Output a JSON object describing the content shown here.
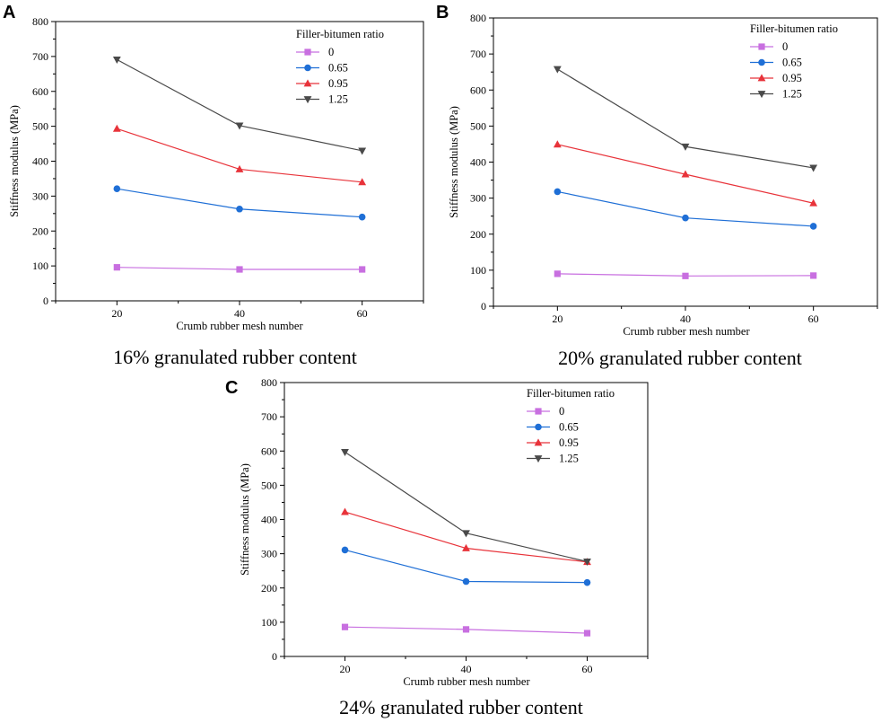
{
  "figure": {
    "series_colors": [
      "#c86fe0",
      "#1f6fd6",
      "#e8333a",
      "#4a4a4a"
    ],
    "axis_color": "#000000"
  },
  "chart_data": [
    {
      "type": "line",
      "panel_label": "A",
      "caption": "16% granulated rubber content",
      "xlabel": "Crumb rubber mesh number",
      "ylabel": "Stiffness modulus (MPa)",
      "legend_title": "Filler-bitumen ratio",
      "legend_position": "top-right",
      "x": [
        20,
        40,
        60
      ],
      "x_ticks": [
        20,
        40,
        60
      ],
      "ylim": [
        0,
        800
      ],
      "y_ticks": [
        0,
        100,
        200,
        300,
        400,
        500,
        600,
        700,
        800
      ],
      "grid": false,
      "series": [
        {
          "name": "0",
          "marker": "square",
          "values": [
            96,
            90,
            90
          ]
        },
        {
          "name": "0.65",
          "marker": "circle",
          "values": [
            321,
            263,
            240
          ]
        },
        {
          "name": "0.95",
          "marker": "triangle-up",
          "values": [
            493,
            377,
            340
          ]
        },
        {
          "name": "1.25",
          "marker": "triangle-down",
          "values": [
            691,
            502,
            430
          ]
        }
      ]
    },
    {
      "type": "line",
      "panel_label": "B",
      "caption": "20% granulated rubber content",
      "xlabel": "Crumb rubber mesh number",
      "ylabel": "Stiffness modulus (MPa)",
      "legend_title": "Filler-bitumen ratio",
      "legend_position": "top-right",
      "x": [
        20,
        40,
        60
      ],
      "x_ticks": [
        20,
        40,
        60
      ],
      "ylim": [
        0,
        800
      ],
      "y_ticks": [
        0,
        100,
        200,
        300,
        400,
        500,
        600,
        700,
        800
      ],
      "grid": false,
      "series": [
        {
          "name": "0",
          "marker": "square",
          "values": [
            90,
            84,
            85
          ]
        },
        {
          "name": "0.65",
          "marker": "circle",
          "values": [
            318,
            245,
            222
          ]
        },
        {
          "name": "0.95",
          "marker": "triangle-up",
          "values": [
            449,
            366,
            286
          ]
        },
        {
          "name": "1.25",
          "marker": "triangle-down",
          "values": [
            658,
            443,
            384
          ]
        }
      ]
    },
    {
      "type": "line",
      "panel_label": "C",
      "caption": "24% granulated rubber content",
      "xlabel": "Crumb rubber mesh number",
      "ylabel": "Stiffness modulus (MPa)",
      "legend_title": "Filler-bitumen ratio",
      "legend_position": "top-right",
      "x": [
        20,
        40,
        60
      ],
      "x_ticks": [
        20,
        40,
        60
      ],
      "ylim": [
        0,
        800
      ],
      "y_ticks": [
        0,
        100,
        200,
        300,
        400,
        500,
        600,
        700,
        800
      ],
      "grid": false,
      "series": [
        {
          "name": "0",
          "marker": "square",
          "values": [
            86,
            79,
            68
          ]
        },
        {
          "name": "0.65",
          "marker": "circle",
          "values": [
            311,
            219,
            216
          ]
        },
        {
          "name": "0.95",
          "marker": "triangle-up",
          "values": [
            422,
            316,
            276
          ]
        },
        {
          "name": "1.25",
          "marker": "triangle-down",
          "values": [
            597,
            360,
            277
          ]
        }
      ]
    }
  ]
}
